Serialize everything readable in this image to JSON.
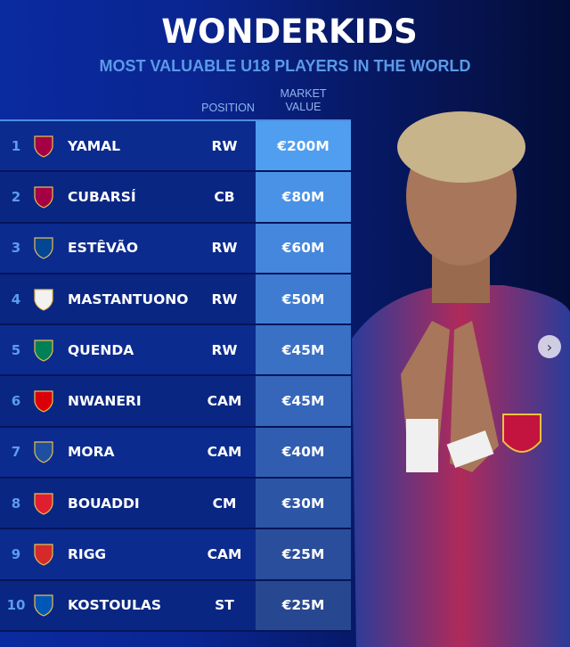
{
  "title": "WONDERKIDS",
  "subtitle": "MOST VALUABLE U18 PLAYERS IN THE WORLD",
  "headers": {
    "position": "POSITION",
    "market_value_line1": "MARKET",
    "market_value_line2": "VALUE"
  },
  "players": [
    {
      "rank": "1",
      "name": "YAMAL",
      "club": "Barcelona",
      "position": "RW",
      "value": "€200M",
      "value_color": "#4f9ef0"
    },
    {
      "rank": "2",
      "name": "CUBARSÍ",
      "club": "Barcelona",
      "position": "CB",
      "value": "€80M",
      "value_color": "#4a92e6"
    },
    {
      "rank": "3",
      "name": "ESTÊVÃO",
      "club": "Chelsea",
      "position": "RW",
      "value": "€60M",
      "value_color": "#4587dc"
    },
    {
      "rank": "4",
      "name": "MASTANTUONO",
      "club": "Real Madrid",
      "position": "RW",
      "value": "€50M",
      "value_color": "#3f7cd1"
    },
    {
      "rank": "5",
      "name": "QUENDA",
      "club": "Sporting CP",
      "position": "RW",
      "value": "€45M",
      "value_color": "#3a71c5"
    },
    {
      "rank": "6",
      "name": "NWANERI",
      "club": "Arsenal",
      "position": "CAM",
      "value": "€45M",
      "value_color": "#3566ba"
    },
    {
      "rank": "7",
      "name": "MORA",
      "club": "Porto",
      "position": "CAM",
      "value": "€40M",
      "value_color": "#315db0"
    },
    {
      "rank": "8",
      "name": "BOUADDI",
      "club": "Lille",
      "position": "CM",
      "value": "€30M",
      "value_color": "#2d55a5"
    },
    {
      "rank": "9",
      "name": "RIGG",
      "club": "Sunderland",
      "position": "CAM",
      "value": "€25M",
      "value_color": "#2a4e9b"
    },
    {
      "rank": "10",
      "name": "KOSTOULAS",
      "club": "Brighton",
      "position": "ST",
      "value": "€25M",
      "value_color": "#274891"
    }
  ],
  "crest_colors": {
    "Barcelona": "#a50044",
    "Chelsea": "#034694",
    "Real Madrid": "#f2f2f2",
    "Sporting CP": "#008057",
    "Arsenal": "#db0007",
    "Porto": "#1f4fa0",
    "Lille": "#e01e2f",
    "Sunderland": "#d42a2a",
    "Brighton": "#0057b8"
  },
  "carousel": {
    "next_icon": "chevron-right-icon",
    "next_glyph": "›"
  }
}
